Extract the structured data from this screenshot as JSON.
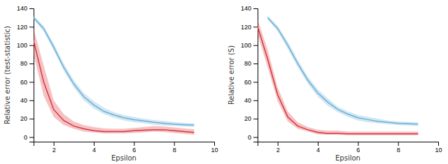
{
  "chart_data": [
    {
      "type": "line",
      "xlabel": "Epsilon",
      "ylabel": "Relative error (test-statistic)",
      "xlim": [
        1,
        10
      ],
      "ylim": [
        -5,
        140
      ],
      "xticks": [
        2,
        4,
        6,
        8,
        10
      ],
      "yticks": [
        0,
        20,
        40,
        60,
        80,
        100,
        120,
        140
      ],
      "series": [
        {
          "color": "#6aafd6",
          "x": [
            1.0,
            1.5,
            2.0,
            2.5,
            3.0,
            3.5,
            4.0,
            4.5,
            5.0,
            5.5,
            6.0,
            6.5,
            7.0,
            7.5,
            8.0,
            8.5,
            9.0
          ],
          "values": [
            130,
            118,
            98,
            76,
            58,
            44,
            35,
            28,
            24,
            21,
            19,
            17.5,
            16,
            15,
            14,
            13.5,
            13
          ],
          "lower": [
            128,
            115,
            94,
            72,
            54,
            40,
            31,
            25,
            21,
            18,
            16,
            15,
            13.5,
            12.5,
            12,
            11.5,
            11
          ],
          "upper": [
            132,
            121,
            102,
            80,
            62,
            48,
            39,
            32,
            27,
            24,
            22,
            20,
            18.5,
            17.5,
            16.5,
            15.5,
            15
          ]
        },
        {
          "color": "#d9343a",
          "x": [
            1.0,
            1.5,
            2.0,
            2.5,
            3.0,
            3.5,
            4.0,
            4.5,
            5.0,
            5.5,
            6.0,
            6.5,
            7.0,
            7.5,
            8.0,
            8.5,
            9.0
          ],
          "values": [
            105,
            60,
            30,
            18,
            12,
            9,
            7,
            6,
            6,
            6,
            7,
            7.5,
            8,
            8,
            7,
            6,
            5
          ],
          "lower": [
            90,
            45,
            22,
            13,
            9,
            6,
            5,
            4,
            4,
            4,
            4.5,
            5,
            6,
            5.5,
            4.5,
            3.5,
            2.5
          ],
          "upper": [
            118,
            78,
            40,
            25,
            17,
            13,
            11,
            9.5,
            9,
            9,
            10,
            11,
            12,
            11.5,
            10.5,
            9.5,
            8.5
          ]
        }
      ]
    },
    {
      "type": "line",
      "xlabel": "Epsilon",
      "ylabel": "Relative error (S)",
      "xlim": [
        1,
        10
      ],
      "ylim": [
        -5,
        140
      ],
      "xticks": [
        2,
        4,
        6,
        8,
        10
      ],
      "yticks": [
        0,
        20,
        40,
        60,
        80,
        100,
        120,
        140
      ],
      "series": [
        {
          "color": "#6aafd6",
          "x": [
            1.5,
            2.0,
            2.5,
            3.0,
            3.5,
            4.0,
            4.5,
            5.0,
            5.5,
            6.0,
            6.5,
            7.0,
            7.5,
            8.0,
            8.5,
            9.0
          ],
          "values": [
            130,
            118,
            100,
            80,
            62,
            48,
            38,
            30,
            25,
            21,
            19,
            17,
            16,
            15,
            14.5,
            14
          ],
          "lower": [
            128,
            115,
            96,
            76,
            58,
            44,
            34,
            27,
            22,
            18,
            16,
            15,
            14,
            13,
            12.5,
            12
          ],
          "upper": [
            132,
            121,
            104,
            84,
            66,
            52,
            42,
            33,
            28,
            24,
            22,
            20,
            18,
            17,
            16.5,
            16
          ]
        },
        {
          "color": "#d9343a",
          "x": [
            1.0,
            1.5,
            2.0,
            2.5,
            3.0,
            3.5,
            4.0,
            4.5,
            5.0,
            5.5,
            6.0,
            6.5,
            7.0,
            7.5,
            8.0,
            8.5,
            9.0
          ],
          "values": [
            120,
            85,
            46,
            22,
            12,
            8,
            5,
            4,
            4,
            3.5,
            3.5,
            3.5,
            3.5,
            3.5,
            3.5,
            3.5,
            3.5
          ],
          "lower": [
            112,
            76,
            39,
            17,
            9,
            6,
            3,
            2.5,
            2.5,
            2,
            2,
            2,
            2,
            2,
            2,
            2,
            2
          ],
          "upper": [
            128,
            95,
            54,
            28,
            16,
            11,
            8,
            7,
            7,
            6,
            6,
            6,
            6,
            6,
            6,
            6,
            6
          ]
        }
      ]
    }
  ]
}
